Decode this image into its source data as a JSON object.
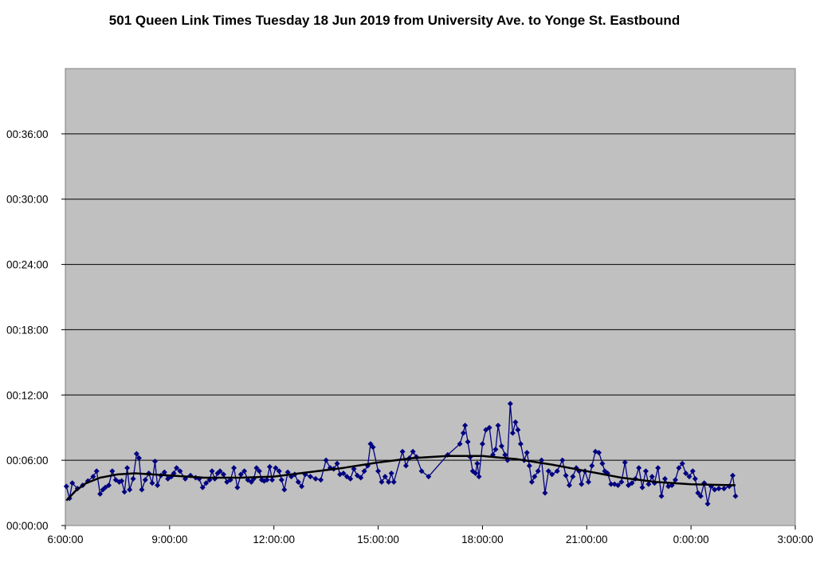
{
  "chart_data": {
    "type": "line",
    "title": "501 Queen Link Times Tuesday 18 Jun 2019 from University Ave. to Yonge St. Eastbound",
    "xlabel": "",
    "ylabel": "",
    "x_ticks": [
      "6:00:00",
      "9:00:00",
      "12:00:00",
      "15:00:00",
      "18:00:00",
      "21:00:00",
      "0:00:00",
      "3:00:00"
    ],
    "y_ticks": [
      "00:00:00",
      "00:06:00",
      "00:12:00",
      "00:18:00",
      "00:24:00",
      "00:30:00",
      "00:36:00"
    ],
    "x_range_hours": [
      6,
      27
    ],
    "y_range_minutes": [
      0,
      42
    ],
    "grid": "horizontal",
    "legend": "none",
    "colors": {
      "plot_background": "#c0c0c0",
      "series": "#000080",
      "trend": "#000000",
      "gridline": "#000000"
    },
    "series": [
      {
        "values": [
          [
            6.03,
            3.6
          ],
          [
            6.12,
            2.5
          ],
          [
            6.2,
            3.9
          ],
          [
            6.35,
            3.4
          ],
          [
            6.5,
            3.7
          ],
          [
            6.65,
            4.1
          ],
          [
            6.8,
            4.5
          ],
          [
            6.9,
            5.0
          ],
          [
            7.0,
            2.9
          ],
          [
            7.08,
            3.3
          ],
          [
            7.15,
            3.5
          ],
          [
            7.25,
            3.7
          ],
          [
            7.35,
            5.0
          ],
          [
            7.45,
            4.2
          ],
          [
            7.55,
            4.0
          ],
          [
            7.62,
            4.1
          ],
          [
            7.7,
            3.1
          ],
          [
            7.78,
            5.3
          ],
          [
            7.85,
            3.3
          ],
          [
            7.95,
            4.3
          ],
          [
            8.05,
            6.6
          ],
          [
            8.12,
            6.2
          ],
          [
            8.2,
            3.3
          ],
          [
            8.3,
            4.2
          ],
          [
            8.4,
            4.8
          ],
          [
            8.5,
            3.9
          ],
          [
            8.58,
            5.9
          ],
          [
            8.65,
            3.7
          ],
          [
            8.75,
            4.6
          ],
          [
            8.85,
            4.9
          ],
          [
            8.95,
            4.3
          ],
          [
            9.05,
            4.5
          ],
          [
            9.12,
            4.8
          ],
          [
            9.2,
            5.3
          ],
          [
            9.3,
            5.0
          ],
          [
            9.45,
            4.3
          ],
          [
            9.6,
            4.6
          ],
          [
            9.75,
            4.4
          ],
          [
            9.85,
            4.3
          ],
          [
            9.95,
            3.5
          ],
          [
            10.05,
            3.9
          ],
          [
            10.15,
            4.2
          ],
          [
            10.22,
            5.0
          ],
          [
            10.3,
            4.3
          ],
          [
            10.38,
            4.8
          ],
          [
            10.45,
            5.0
          ],
          [
            10.55,
            4.7
          ],
          [
            10.65,
            4.0
          ],
          [
            10.75,
            4.2
          ],
          [
            10.85,
            5.3
          ],
          [
            10.95,
            3.5
          ],
          [
            11.05,
            4.7
          ],
          [
            11.15,
            5.0
          ],
          [
            11.25,
            4.2
          ],
          [
            11.35,
            4.0
          ],
          [
            11.42,
            4.3
          ],
          [
            11.5,
            5.3
          ],
          [
            11.58,
            5.0
          ],
          [
            11.65,
            4.2
          ],
          [
            11.72,
            4.1
          ],
          [
            11.8,
            4.2
          ],
          [
            11.88,
            5.4
          ],
          [
            11.95,
            4.2
          ],
          [
            12.05,
            5.3
          ],
          [
            12.15,
            5.0
          ],
          [
            12.22,
            4.2
          ],
          [
            12.3,
            3.3
          ],
          [
            12.4,
            4.9
          ],
          [
            12.5,
            4.5
          ],
          [
            12.6,
            4.7
          ],
          [
            12.7,
            4.0
          ],
          [
            12.8,
            3.6
          ],
          [
            12.9,
            4.7
          ],
          [
            13.05,
            4.5
          ],
          [
            13.2,
            4.3
          ],
          [
            13.35,
            4.2
          ],
          [
            13.5,
            6.0
          ],
          [
            13.62,
            5.3
          ],
          [
            13.72,
            5.2
          ],
          [
            13.82,
            5.7
          ],
          [
            13.9,
            4.7
          ],
          [
            14.0,
            4.8
          ],
          [
            14.1,
            4.5
          ],
          [
            14.2,
            4.3
          ],
          [
            14.3,
            5.2
          ],
          [
            14.4,
            4.6
          ],
          [
            14.5,
            4.4
          ],
          [
            14.6,
            5.0
          ],
          [
            14.7,
            5.5
          ],
          [
            14.78,
            7.5
          ],
          [
            14.85,
            7.2
          ],
          [
            15.0,
            5.0
          ],
          [
            15.1,
            4.0
          ],
          [
            15.2,
            4.5
          ],
          [
            15.3,
            4.0
          ],
          [
            15.38,
            4.8
          ],
          [
            15.45,
            4.0
          ],
          [
            15.7,
            6.8
          ],
          [
            15.8,
            5.5
          ],
          [
            15.9,
            6.2
          ],
          [
            16.0,
            6.8
          ],
          [
            16.1,
            6.3
          ],
          [
            16.25,
            5.0
          ],
          [
            16.45,
            4.5
          ],
          [
            17.0,
            6.5
          ],
          [
            17.35,
            7.5
          ],
          [
            17.45,
            8.5
          ],
          [
            17.5,
            9.2
          ],
          [
            17.58,
            7.7
          ],
          [
            17.65,
            6.3
          ],
          [
            17.72,
            5.0
          ],
          [
            17.8,
            4.8
          ],
          [
            17.85,
            5.7
          ],
          [
            17.9,
            4.5
          ],
          [
            18.0,
            7.5
          ],
          [
            18.1,
            8.8
          ],
          [
            18.2,
            9.0
          ],
          [
            18.3,
            6.5
          ],
          [
            18.38,
            7.0
          ],
          [
            18.45,
            9.2
          ],
          [
            18.55,
            7.3
          ],
          [
            18.65,
            6.5
          ],
          [
            18.72,
            6.0
          ],
          [
            18.8,
            11.2
          ],
          [
            18.87,
            8.5
          ],
          [
            18.95,
            9.5
          ],
          [
            19.02,
            8.8
          ],
          [
            19.1,
            7.5
          ],
          [
            19.2,
            6.0
          ],
          [
            19.28,
            6.7
          ],
          [
            19.35,
            5.5
          ],
          [
            19.42,
            4.0
          ],
          [
            19.5,
            4.5
          ],
          [
            19.6,
            5.0
          ],
          [
            19.7,
            6.0
          ],
          [
            19.8,
            3.0
          ],
          [
            19.9,
            5.0
          ],
          [
            20.0,
            4.7
          ],
          [
            20.15,
            5.0
          ],
          [
            20.3,
            6.0
          ],
          [
            20.4,
            4.6
          ],
          [
            20.5,
            3.7
          ],
          [
            20.6,
            4.5
          ],
          [
            20.7,
            5.3
          ],
          [
            20.78,
            5.0
          ],
          [
            20.85,
            3.8
          ],
          [
            20.95,
            5.0
          ],
          [
            21.05,
            4.0
          ],
          [
            21.15,
            5.5
          ],
          [
            21.25,
            6.8
          ],
          [
            21.35,
            6.7
          ],
          [
            21.45,
            5.7
          ],
          [
            21.52,
            5.0
          ],
          [
            21.6,
            4.8
          ],
          [
            21.7,
            3.8
          ],
          [
            21.8,
            3.8
          ],
          [
            21.9,
            3.7
          ],
          [
            22.0,
            4.0
          ],
          [
            22.1,
            5.8
          ],
          [
            22.2,
            3.7
          ],
          [
            22.3,
            3.9
          ],
          [
            22.4,
            4.3
          ],
          [
            22.5,
            5.3
          ],
          [
            22.6,
            3.5
          ],
          [
            22.7,
            5.0
          ],
          [
            22.78,
            3.8
          ],
          [
            22.88,
            4.5
          ],
          [
            22.95,
            3.9
          ],
          [
            23.05,
            5.3
          ],
          [
            23.15,
            2.7
          ],
          [
            23.25,
            4.3
          ],
          [
            23.35,
            3.6
          ],
          [
            23.45,
            3.7
          ],
          [
            23.55,
            4.2
          ],
          [
            23.65,
            5.3
          ],
          [
            23.75,
            5.7
          ],
          [
            23.85,
            4.8
          ],
          [
            23.95,
            4.5
          ],
          [
            24.05,
            5.0
          ],
          [
            24.12,
            4.3
          ],
          [
            24.2,
            3.0
          ],
          [
            24.28,
            2.7
          ],
          [
            24.38,
            3.9
          ],
          [
            24.48,
            2.0
          ],
          [
            24.58,
            3.6
          ],
          [
            24.68,
            3.3
          ],
          [
            24.8,
            3.4
          ],
          [
            24.95,
            3.4
          ],
          [
            25.1,
            3.6
          ],
          [
            25.2,
            4.6
          ],
          [
            25.28,
            2.7
          ]
        ]
      },
      {
        "values": [
          [
            6.03,
            2.3
          ],
          [
            6.3,
            3.2
          ],
          [
            6.6,
            3.9
          ],
          [
            7.0,
            4.4
          ],
          [
            7.5,
            4.7
          ],
          [
            8.0,
            4.8
          ],
          [
            9.0,
            4.6
          ],
          [
            10.0,
            4.4
          ],
          [
            11.0,
            4.4
          ],
          [
            12.0,
            4.5
          ],
          [
            13.0,
            4.9
          ],
          [
            14.0,
            5.3
          ],
          [
            15.0,
            5.8
          ],
          [
            16.0,
            6.2
          ],
          [
            17.0,
            6.4
          ],
          [
            18.0,
            6.4
          ],
          [
            19.0,
            6.1
          ],
          [
            20.0,
            5.6
          ],
          [
            21.0,
            5.0
          ],
          [
            22.0,
            4.4
          ],
          [
            23.0,
            4.0
          ],
          [
            24.0,
            3.8
          ],
          [
            25.28,
            3.7
          ]
        ]
      }
    ]
  }
}
